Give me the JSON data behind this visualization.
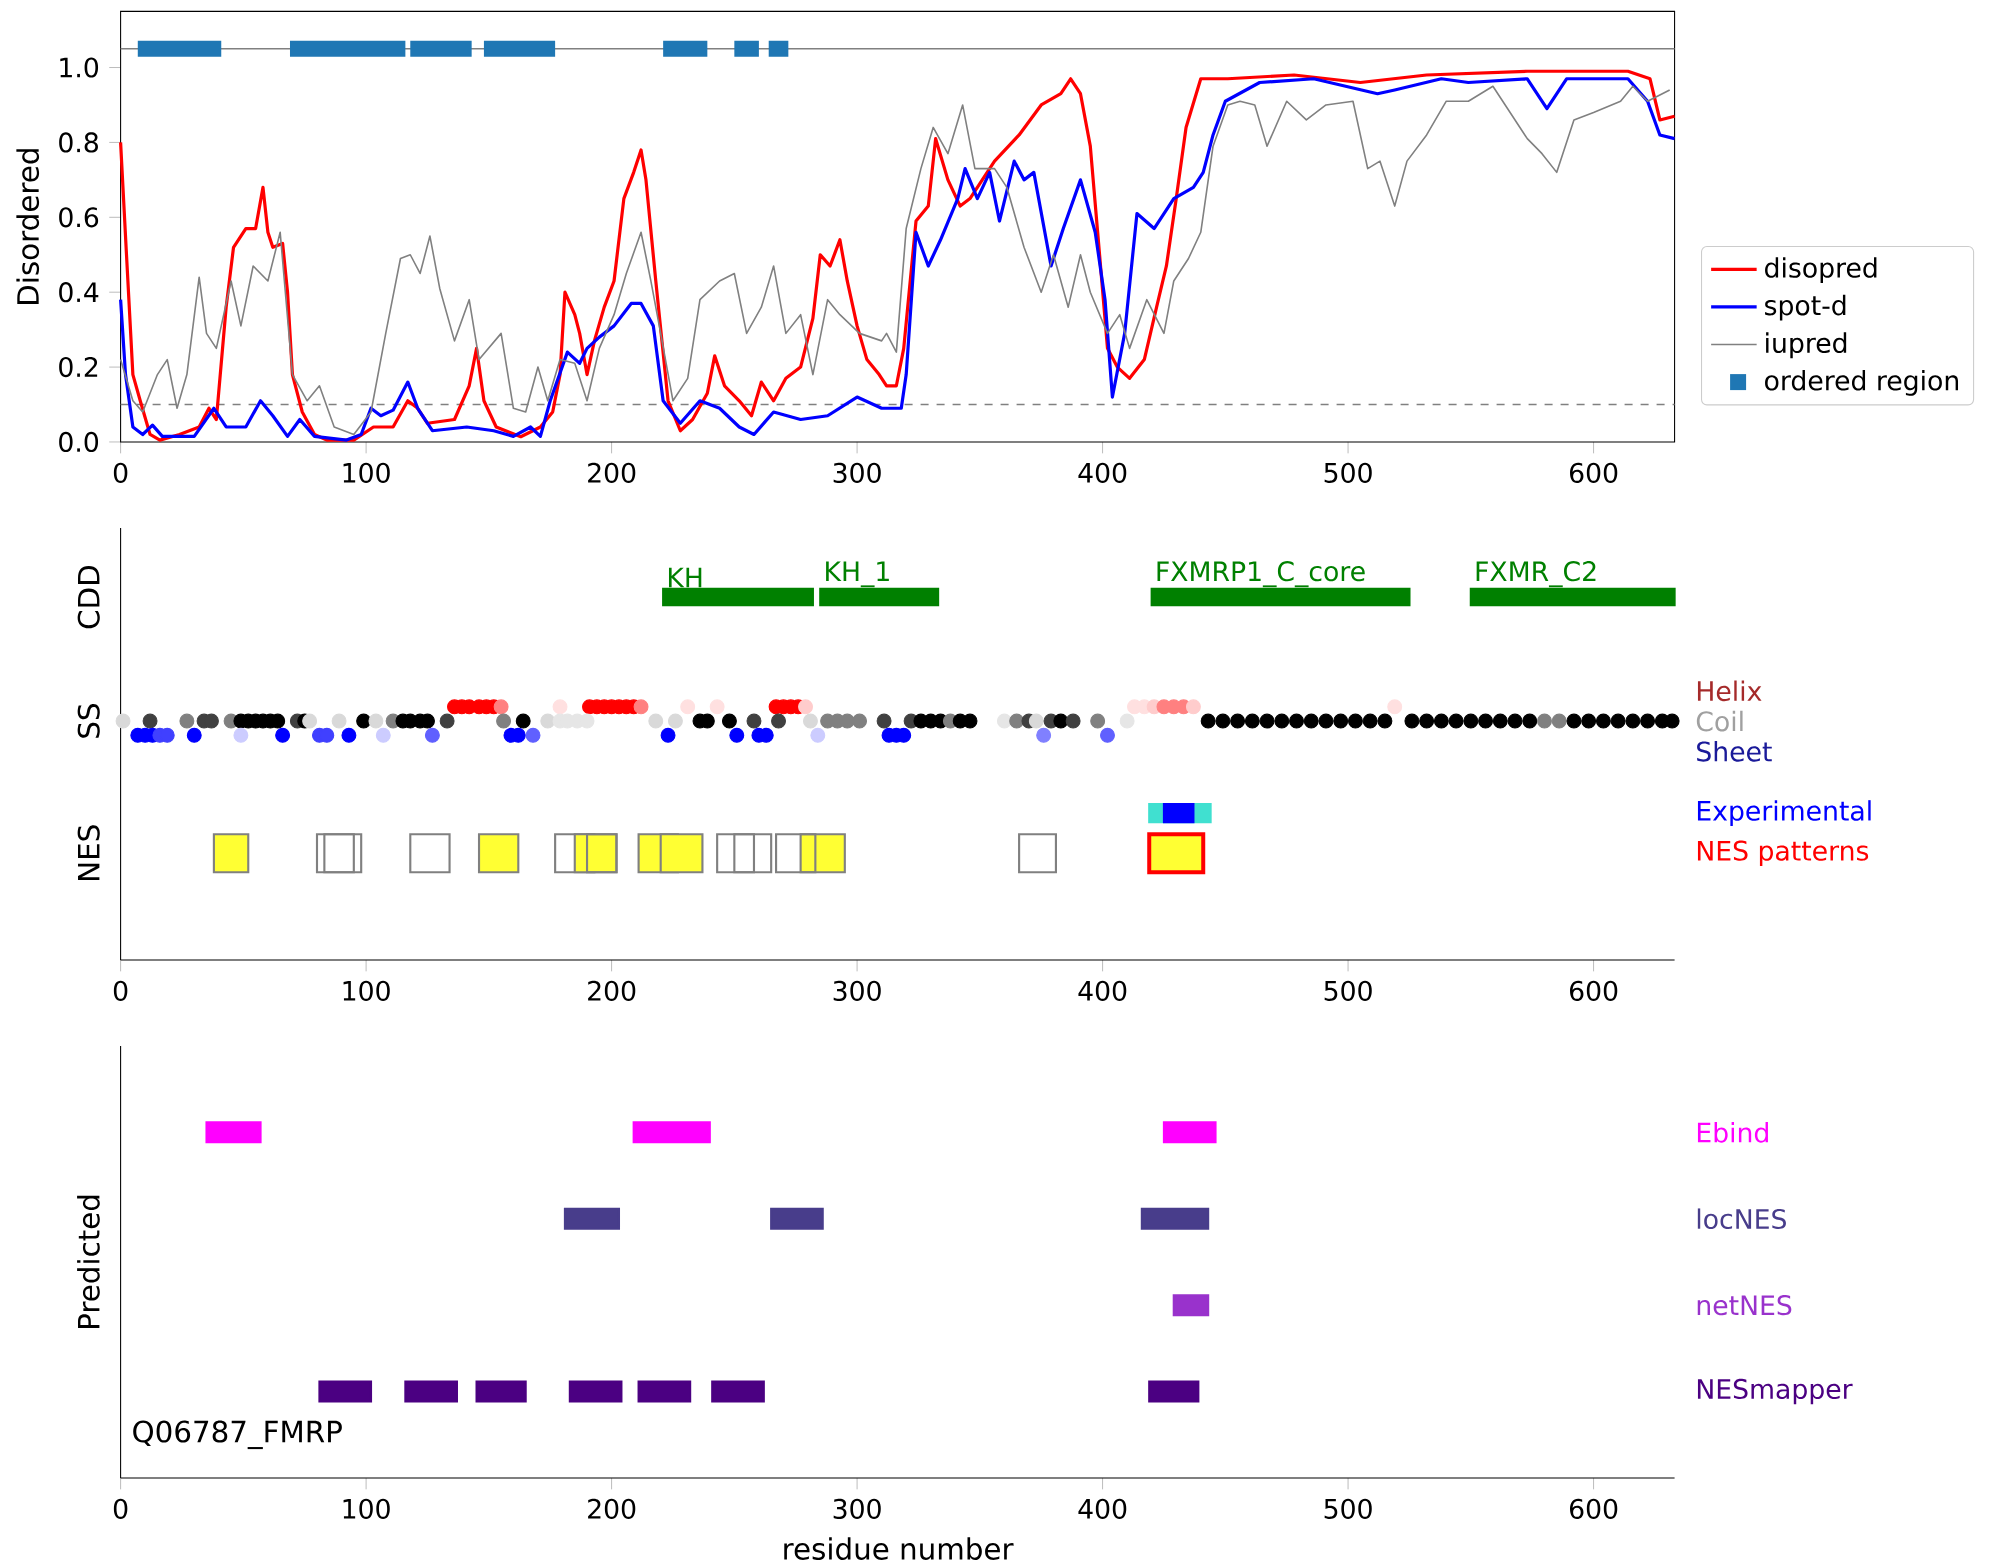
{
  "chart_data": [
    {
      "type": "line",
      "ylabel": "Disordered",
      "xlim": [
        0,
        633
      ],
      "ylim": [
        0,
        1.15
      ],
      "xticks": [
        0,
        100,
        200,
        300,
        400,
        500,
        600
      ],
      "yticks": [
        {
          "value": 0,
          "label": "0.0"
        },
        0.2,
        0.4,
        0.6,
        0.8,
        {
          "value": 1,
          "label": "1.0"
        }
      ],
      "legend": "right",
      "ref_lines": [
        {
          "axis": "y",
          "value": 1.05,
          "color": "#808080",
          "line_style": "solid"
        },
        {
          "axis": "y",
          "value": 0.1,
          "color": "#808080",
          "line_style": "dashed"
        }
      ],
      "series": [
        {
          "name": "disopred",
          "color": "#ff0000",
          "x": [
            0,
            2.4,
            5,
            8,
            12,
            16,
            24,
            32,
            36,
            39,
            43,
            46,
            51,
            55,
            58,
            60,
            62,
            66,
            68,
            70,
            74,
            79,
            84,
            95,
            103,
            111,
            117,
            121,
            125,
            136,
            142,
            145,
            148,
            153,
            163,
            171,
            176,
            179,
            181,
            185,
            187,
            190,
            193,
            197,
            201,
            205,
            209,
            212,
            214,
            218,
            223,
            228,
            233,
            239,
            242,
            246,
            252,
            257,
            261,
            266,
            271,
            277,
            282,
            285,
            289,
            293,
            296,
            300,
            304,
            309,
            312,
            316,
            319,
            324,
            329,
            332,
            337,
            342,
            346,
            356,
            366,
            375,
            383,
            387,
            391,
            395,
            398,
            402,
            406,
            411,
            417,
            422,
            426,
            430,
            434,
            440,
            451,
            478,
            505,
            532,
            573,
            614,
            623,
            627,
            633
          ],
          "values": [
            0.8,
            0.5,
            0.18,
            0.11,
            0.02,
            0.005,
            0.02,
            0.04,
            0.09,
            0.06,
            0.36,
            0.52,
            0.57,
            0.57,
            0.68,
            0.56,
            0.52,
            0.53,
            0.4,
            0.18,
            0.08,
            0.02,
            0.005,
            0.005,
            0.04,
            0.04,
            0.11,
            0.09,
            0.05,
            0.06,
            0.15,
            0.25,
            0.11,
            0.04,
            0.014,
            0.04,
            0.08,
            0.18,
            0.4,
            0.34,
            0.29,
            0.18,
            0.27,
            0.36,
            0.43,
            0.65,
            0.72,
            0.78,
            0.7,
            0.43,
            0.11,
            0.03,
            0.06,
            0.13,
            0.23,
            0.15,
            0.11,
            0.07,
            0.16,
            0.11,
            0.17,
            0.2,
            0.33,
            0.5,
            0.47,
            0.54,
            0.43,
            0.31,
            0.22,
            0.18,
            0.15,
            0.15,
            0.25,
            0.59,
            0.63,
            0.81,
            0.7,
            0.63,
            0.65,
            0.75,
            0.82,
            0.9,
            0.93,
            0.97,
            0.93,
            0.79,
            0.56,
            0.25,
            0.2,
            0.17,
            0.22,
            0.36,
            0.47,
            0.65,
            0.84,
            0.97,
            0.97,
            0.98,
            0.96,
            0.98,
            0.99,
            0.99,
            0.97,
            0.86,
            0.87
          ]
        },
        {
          "name": "spot-d",
          "color": "#0000ff",
          "x": [
            0,
            2,
            5,
            9,
            13,
            17,
            30,
            38,
            43,
            51,
            57,
            62,
            68,
            73,
            79,
            92,
            98,
            102,
            106,
            111,
            117,
            121,
            127,
            141,
            152,
            160,
            167,
            171,
            175,
            182,
            187,
            190,
            195,
            201,
            208,
            212,
            217,
            221,
            228,
            236,
            244,
            252,
            258,
            266,
            277,
            288,
            300,
            310,
            318,
            320,
            324,
            329,
            334,
            341,
            344,
            349,
            354,
            358,
            364,
            368,
            372,
            379,
            384,
            391,
            397,
            401,
            404,
            409,
            414,
            421,
            429,
            437,
            441,
            445,
            450,
            464,
            486,
            512,
            519,
            538,
            549,
            573,
            581,
            589,
            614,
            622,
            627,
            633
          ],
          "values": [
            0.38,
            0.18,
            0.04,
            0.02,
            0.045,
            0.015,
            0.015,
            0.09,
            0.04,
            0.04,
            0.11,
            0.07,
            0.015,
            0.06,
            0.015,
            0.005,
            0.02,
            0.09,
            0.07,
            0.085,
            0.16,
            0.09,
            0.03,
            0.04,
            0.03,
            0.015,
            0.04,
            0.015,
            0.11,
            0.24,
            0.21,
            0.25,
            0.28,
            0.31,
            0.37,
            0.37,
            0.31,
            0.11,
            0.05,
            0.11,
            0.09,
            0.04,
            0.02,
            0.08,
            0.06,
            0.07,
            0.12,
            0.09,
            0.09,
            0.18,
            0.56,
            0.47,
            0.54,
            0.65,
            0.73,
            0.65,
            0.72,
            0.59,
            0.75,
            0.7,
            0.72,
            0.47,
            0.57,
            0.7,
            0.56,
            0.38,
            0.12,
            0.29,
            0.61,
            0.57,
            0.65,
            0.68,
            0.72,
            0.82,
            0.91,
            0.96,
            0.97,
            0.93,
            0.94,
            0.97,
            0.96,
            0.97,
            0.89,
            0.97,
            0.97,
            0.91,
            0.82,
            0.81
          ]
        },
        {
          "name": "iupred",
          "color": "#808080",
          "x": [
            0,
            5,
            9,
            15,
            19,
            23,
            27,
            32,
            35,
            39,
            45,
            49,
            54,
            60,
            65,
            70,
            76,
            81,
            87,
            95,
            102,
            108,
            114,
            118,
            122,
            126,
            130,
            136,
            142,
            146,
            155,
            160,
            165,
            170,
            174,
            179,
            185,
            190,
            195,
            201,
            206,
            212,
            216,
            220,
            225,
            231,
            236,
            244,
            250,
            255,
            261,
            266,
            271,
            277,
            282,
            288,
            293,
            301,
            310,
            312,
            316,
            320,
            326,
            331,
            337,
            343,
            348,
            356,
            361,
            368,
            375,
            380,
            386,
            391,
            395,
            402,
            407,
            411,
            418,
            425,
            429,
            435,
            440,
            445,
            451,
            456,
            462,
            467,
            475,
            483,
            491,
            502,
            508,
            513,
            519,
            524,
            532,
            540,
            549,
            559,
            573,
            579,
            585,
            592,
            600,
            611,
            616,
            622,
            631
          ],
          "values": [
            0.22,
            0.11,
            0.08,
            0.18,
            0.22,
            0.09,
            0.18,
            0.44,
            0.29,
            0.25,
            0.43,
            0.31,
            0.47,
            0.43,
            0.56,
            0.18,
            0.11,
            0.15,
            0.04,
            0.02,
            0.08,
            0.29,
            0.49,
            0.5,
            0.45,
            0.55,
            0.41,
            0.27,
            0.38,
            0.22,
            0.29,
            0.09,
            0.08,
            0.2,
            0.11,
            0.22,
            0.21,
            0.11,
            0.25,
            0.34,
            0.45,
            0.56,
            0.43,
            0.29,
            0.11,
            0.17,
            0.38,
            0.43,
            0.45,
            0.29,
            0.36,
            0.47,
            0.29,
            0.34,
            0.18,
            0.38,
            0.34,
            0.29,
            0.27,
            0.29,
            0.24,
            0.57,
            0.73,
            0.84,
            0.77,
            0.9,
            0.73,
            0.73,
            0.68,
            0.52,
            0.4,
            0.5,
            0.36,
            0.5,
            0.4,
            0.29,
            0.34,
            0.25,
            0.38,
            0.29,
            0.43,
            0.49,
            0.56,
            0.79,
            0.9,
            0.91,
            0.9,
            0.79,
            0.91,
            0.86,
            0.9,
            0.91,
            0.73,
            0.75,
            0.63,
            0.75,
            0.82,
            0.91,
            0.91,
            0.95,
            0.81,
            0.77,
            0.72,
            0.86,
            0.88,
            0.91,
            0.95,
            0.91,
            0.94
          ]
        },
        {
          "name": "ordered region",
          "color": "#1f77b4",
          "x": [
            7,
            41,
            55,
            69,
            116,
            117,
            118,
            143,
            145,
            148,
            177,
            200,
            221,
            239,
            245,
            250,
            260,
            262,
            264,
            272
          ],
          "values": [
            1.05,
            1.05,
            null,
            1.05,
            1.05,
            null,
            1.05,
            1.05,
            null,
            1.05,
            1.05,
            null,
            1.05,
            1.05,
            null,
            1.05,
            1.05,
            null,
            1.05,
            1.05
          ]
        }
      ]
    },
    {
      "type": "bar",
      "orientation": "horizontal",
      "categories": [
        "CDD",
        "SS",
        null,
        "NES"
      ],
      "xlim": [
        0,
        633
      ],
      "xticks": [
        0,
        100,
        200,
        300,
        400,
        500,
        600
      ],
      "annotations": [
        {
          "text": "KH",
          "x": 221,
          "y": "CDD"
        },
        {
          "text": "KH_1",
          "x": 285,
          "y": "CDD"
        },
        {
          "text": "FXMRP1_C_core",
          "x": 420,
          "y": "CDD"
        },
        {
          "text": "FXMR_C2",
          "x": 550,
          "y": "CDD"
        }
      ],
      "series": [
        {
          "color": "#808080",
          "base": [
            221,
            null,
            null,
            38
          ],
          "values": [
            61,
            null,
            null,
            14
          ],
          "colors": [
            "#008000",
            null,
            null,
            "#ffff33"
          ]
        },
        {
          "color": "#808080",
          "base": [
            285,
            null,
            null,
            80
          ],
          "values": [
            48,
            null,
            null,
            15
          ],
          "colors": [
            "#008000",
            null,
            null,
            null
          ]
        },
        {
          "color": "#808080",
          "base": [
            420,
            null,
            null,
            83
          ],
          "values": [
            105,
            null,
            null,
            15
          ],
          "colors": [
            "#008000",
            null,
            null,
            null
          ]
        },
        {
          "color": "#808080",
          "base": [
            550,
            null,
            null,
            118
          ],
          "values": [
            83,
            null,
            null,
            16
          ],
          "colors": [
            "#008000",
            null,
            null,
            null
          ]
        },
        {
          "color": "#808080",
          "base": [
            null,
            null,
            null,
            146
          ],
          "values": [
            null,
            null,
            null,
            16
          ],
          "colors": [
            null,
            null,
            null,
            "#ffff33"
          ]
        },
        {
          "color": "#808080",
          "base": [
            null,
            null,
            null,
            177
          ],
          "values": [
            null,
            null,
            null,
            16
          ],
          "colors": [
            null,
            null,
            null,
            null
          ]
        },
        {
          "color": "#808080",
          "base": [
            null,
            null,
            null,
            185
          ],
          "values": [
            null,
            null,
            null,
            17
          ],
          "colors": [
            null,
            null,
            null,
            "#ffff33"
          ]
        },
        {
          "color": "#808080",
          "base": [
            null,
            null,
            null,
            190
          ],
          "values": [
            null,
            null,
            null,
            12
          ],
          "colors": [
            null,
            null,
            null,
            null
          ]
        },
        {
          "color": "#808080",
          "base": [
            null,
            null,
            null,
            211
          ],
          "values": [
            null,
            null,
            null,
            16
          ],
          "colors": [
            null,
            null,
            null,
            "#ffff33"
          ]
        },
        {
          "color": "#808080",
          "base": [
            null,
            null,
            null,
            220
          ],
          "values": [
            null,
            null,
            null,
            17
          ],
          "colors": [
            null,
            null,
            null,
            "#ffff33"
          ]
        },
        {
          "color": "#808080",
          "base": [
            null,
            null,
            null,
            243
          ],
          "values": [
            null,
            null,
            null,
            15
          ],
          "colors": [
            null,
            null,
            null,
            null
          ]
        },
        {
          "color": "#808080",
          "base": [
            null,
            null,
            null,
            250
          ],
          "values": [
            null,
            null,
            null,
            15
          ],
          "colors": [
            null,
            null,
            null,
            null
          ]
        },
        {
          "color": "#808080",
          "base": [
            null,
            null,
            null,
            277
          ],
          "values": [
            null,
            null,
            null,
            18
          ],
          "colors": [
            null,
            null,
            null,
            "#ffff33"
          ]
        },
        {
          "color": "#808080",
          "base": [
            null,
            null,
            null,
            267
          ],
          "values": [
            null,
            null,
            null,
            16
          ],
          "colors": [
            null,
            null,
            null,
            null
          ]
        },
        {
          "color": "#808080",
          "base": [
            null,
            null,
            null,
            366
          ],
          "values": [
            null,
            null,
            null,
            15
          ],
          "colors": [
            null,
            null,
            null,
            null
          ]
        },
        {
          "color": "#40e0d0",
          "base": [
            null,
            null,
            419,
            null
          ],
          "values": [
            null,
            null,
            25,
            null
          ]
        },
        {
          "name": "Experimental",
          "color": "#0000ff",
          "base": [
            null,
            null,
            425,
            null
          ],
          "values": [
            null,
            null,
            12,
            null
          ]
        },
        {
          "name": "NES patterns",
          "color": "#ff0000",
          "base": [
            null,
            null,
            null,
            419
          ],
          "values": [
            null,
            null,
            null,
            22
          ],
          "colors": [
            null,
            null,
            null,
            "#ffff33"
          ]
        },
        {
          "name": "Helix",
          "type": "scatter",
          "color": "#a52a2a",
          "x": [
            "SS",
            "SS",
            "SS",
            "SS",
            "SS",
            "SS",
            "SS",
            "SS",
            "SS",
            "SS",
            "SS",
            "SS",
            "SS",
            "SS",
            "SS",
            "SS",
            "SS",
            "SS",
            "SS",
            "SS",
            "SS",
            "SS",
            "SS",
            "SS",
            "SS",
            "SS",
            "SS",
            "SS",
            "SS",
            "SS",
            "SS"
          ],
          "values": [
            136,
            139,
            142,
            146,
            149,
            152,
            155,
            179,
            191,
            194,
            197,
            200,
            203,
            206,
            209,
            212,
            231,
            243,
            267,
            270,
            273,
            276,
            279,
            413,
            417,
            421,
            425,
            429,
            433,
            437,
            519
          ],
          "colors": [
            "#ff0000",
            "#ff0000",
            "#ff0000",
            "#ff0000",
            "#ff0000",
            "#ff0000",
            "#ff8080",
            "#ffe0e0",
            "#ff0000",
            "#ff0000",
            "#ff0000",
            "#ff0000",
            "#ff0000",
            "#ff0000",
            "#ff0000",
            "#ff8080",
            "#ffe0e0",
            "#ffe0e0",
            "#ff0000",
            "#ff0000",
            "#ff0000",
            "#ff0000",
            "#ffcccc",
            "#ffe0e0",
            "#ffe0e0",
            "#ffcccc",
            "#ff8080",
            "#ff8080",
            "#ff8080",
            "#ffcccc",
            "#ffe0e0"
          ]
        },
        {
          "name": "Coil",
          "type": "scatter",
          "color": "#a0a0a0",
          "x": [
            "SS",
            "SS",
            "SS",
            "SS",
            "SS",
            "SS",
            "SS",
            "SS",
            "SS",
            "SS",
            "SS",
            "SS",
            "SS",
            "SS",
            "SS",
            "SS",
            "SS",
            "SS",
            "SS",
            "SS",
            "SS",
            "SS",
            "SS",
            "SS",
            "SS",
            "SS",
            "SS",
            "SS",
            "SS",
            "SS",
            "SS",
            "SS",
            "SS",
            "SS",
            "SS",
            "SS",
            "SS",
            "SS",
            "SS",
            "SS",
            "SS",
            "SS",
            "SS",
            "SS",
            "SS",
            "SS",
            "SS",
            "SS",
            "SS",
            "SS",
            "SS",
            "SS",
            "SS",
            "SS",
            "SS",
            "SS",
            "SS",
            "SS",
            "SS",
            "SS",
            "SS",
            "SS",
            "SS",
            "SS",
            "SS",
            "SS",
            "SS",
            "SS",
            "SS",
            "SS",
            "SS",
            "SS",
            "SS",
            "SS",
            "SS",
            "SS",
            "SS",
            "SS",
            "SS",
            "SS",
            "SS",
            "SS",
            "SS",
            "SS",
            "SS",
            "SS",
            "SS",
            "SS",
            "SS",
            "SS",
            "SS",
            "SS"
          ],
          "values": [
            1,
            12,
            27,
            34,
            37,
            45,
            49,
            52,
            55,
            58,
            61,
            64,
            72,
            75,
            77,
            89,
            99,
            104,
            111,
            115,
            118,
            122,
            125,
            133,
            156,
            164,
            174,
            179,
            182,
            186,
            190,
            218,
            226,
            236,
            239,
            248,
            258,
            268,
            281,
            288,
            292,
            296,
            301,
            311,
            322,
            326,
            330,
            334,
            338,
            342,
            346,
            360,
            365,
            370,
            373,
            379,
            383,
            388,
            398,
            410,
            443,
            449,
            455,
            461,
            467,
            473,
            479,
            485,
            491,
            497,
            503,
            509,
            515,
            526,
            532,
            538,
            544,
            550,
            556,
            562,
            568,
            574,
            580,
            586,
            592,
            598,
            604,
            610,
            616,
            622,
            628,
            632
          ],
          "colors": [
            "#d9d9d9",
            "#404040",
            "#808080",
            "#404040",
            "#404040",
            "#808080",
            "#000000",
            "#000000",
            "#000000",
            "#000000",
            "#000000",
            "#000000",
            "#404040",
            "#000000",
            "#d9d9d9",
            "#d9d9d9",
            "#000000",
            "#d9d9d9",
            "#808080",
            "#000000",
            "#000000",
            "#000000",
            "#000000",
            "#404040",
            "#808080",
            "#000000",
            "#d9d9d9",
            "#e6e6e6",
            "#e6e6e6",
            "#e6e6e6",
            "#e6e6e6",
            "#d9d9d9",
            "#d9d9d9",
            "#000000",
            "#000000",
            "#000000",
            "#404040",
            "#404040",
            "#d9d9d9",
            "#808080",
            "#808080",
            "#808080",
            "#808080",
            "#404040",
            "#404040",
            "#000000",
            "#000000",
            "#000000",
            "#808080",
            "#000000",
            "#000000",
            "#e6e6e6",
            "#808080",
            "#404040",
            "#d9d9d9",
            "#404040",
            "#000000",
            "#404040",
            "#808080",
            "#e6e6e6",
            "#000000",
            "#000000",
            "#000000",
            "#000000",
            "#000000",
            "#000000",
            "#000000",
            "#000000",
            "#000000",
            "#000000",
            "#000000",
            "#000000",
            "#000000",
            "#000000",
            "#000000",
            "#000000",
            "#000000",
            "#000000",
            "#000000",
            "#000000",
            "#000000",
            "#000000",
            "#808080",
            "#808080",
            "#000000",
            "#000000",
            "#000000",
            "#000000",
            "#000000",
            "#000000",
            "#000000",
            "#000000"
          ]
        },
        {
          "name": "Sheet",
          "type": "scatter",
          "color": "#1a1a99",
          "x": [
            "SS",
            "SS",
            "SS",
            "SS",
            "SS",
            "SS",
            "SS",
            "SS",
            "SS",
            "SS",
            "SS",
            "SS",
            "SS",
            "SS",
            "SS",
            "SS",
            "SS",
            "SS",
            "SS",
            "SS",
            "SS",
            "SS",
            "SS",
            "SS",
            "SS",
            "SS"
          ],
          "values": [
            7,
            10,
            13,
            16,
            19,
            30,
            49,
            66,
            81,
            84,
            93,
            107,
            127,
            159,
            162,
            168,
            223,
            251,
            260,
            263,
            284,
            313,
            316,
            319,
            376,
            402
          ],
          "colors": [
            "#0000ff",
            "#0000ff",
            "#0000ff",
            "#4040ff",
            "#4040ff",
            "#0000ff",
            "#ccccff",
            "#0000ff",
            "#4040ff",
            "#4040ff",
            "#0000ff",
            "#ccccff",
            "#6060ff",
            "#0000ff",
            "#0000ff",
            "#6060ff",
            "#0000ff",
            "#0000ff",
            "#0000ff",
            "#0000ff",
            "#ccccff",
            "#0000ff",
            "#0000ff",
            "#0000ff",
            "#8080ff",
            "#6060ff"
          ]
        }
      ]
    },
    {
      "type": "bar",
      "orientation": "horizontal",
      "categories": [
        "Ebind",
        "locNES",
        "netNES",
        "NESmapper"
      ],
      "ylabel": "Predicted",
      "xlabel": "residue number",
      "xlim": [
        0,
        633
      ],
      "xticks": [
        0,
        100,
        200,
        300,
        400,
        500,
        600
      ],
      "annotations": [
        "Q06787_FMRP"
      ],
      "series": [
        {
          "base": [
            35,
            181,
            429,
            81
          ],
          "values": [
            22,
            22,
            14,
            21
          ],
          "colors": [
            "#ff00ff",
            "#483d8b",
            "#9932cc",
            "#4b0082"
          ]
        },
        {
          "base": [
            209,
            265,
            null,
            116
          ],
          "values": [
            31,
            21,
            null,
            21
          ],
          "colors": [
            "#ff00ff",
            "#483d8b",
            null,
            "#4b0082"
          ]
        },
        {
          "base": [
            425,
            416,
            null,
            145
          ],
          "values": [
            21,
            27,
            null,
            20
          ],
          "colors": [
            "#ff00ff",
            "#483d8b",
            null,
            "#4b0082"
          ]
        },
        {
          "base": [
            null,
            null,
            null,
            183
          ],
          "values": [
            null,
            null,
            null,
            21
          ],
          "colors": [
            null,
            null,
            null,
            "#4b0082"
          ]
        },
        {
          "base": [
            null,
            null,
            null,
            211
          ],
          "values": [
            null,
            null,
            null,
            21
          ],
          "colors": [
            null,
            null,
            null,
            "#4b0082"
          ]
        },
        {
          "base": [
            null,
            null,
            null,
            241
          ],
          "values": [
            null,
            null,
            null,
            21
          ],
          "colors": [
            null,
            null,
            null,
            "#4b0082"
          ]
        },
        {
          "base": [
            null,
            null,
            null,
            419
          ],
          "values": [
            null,
            null,
            null,
            20
          ],
          "colors": [
            null,
            null,
            null,
            "#4b0082"
          ]
        }
      ]
    }
  ]
}
